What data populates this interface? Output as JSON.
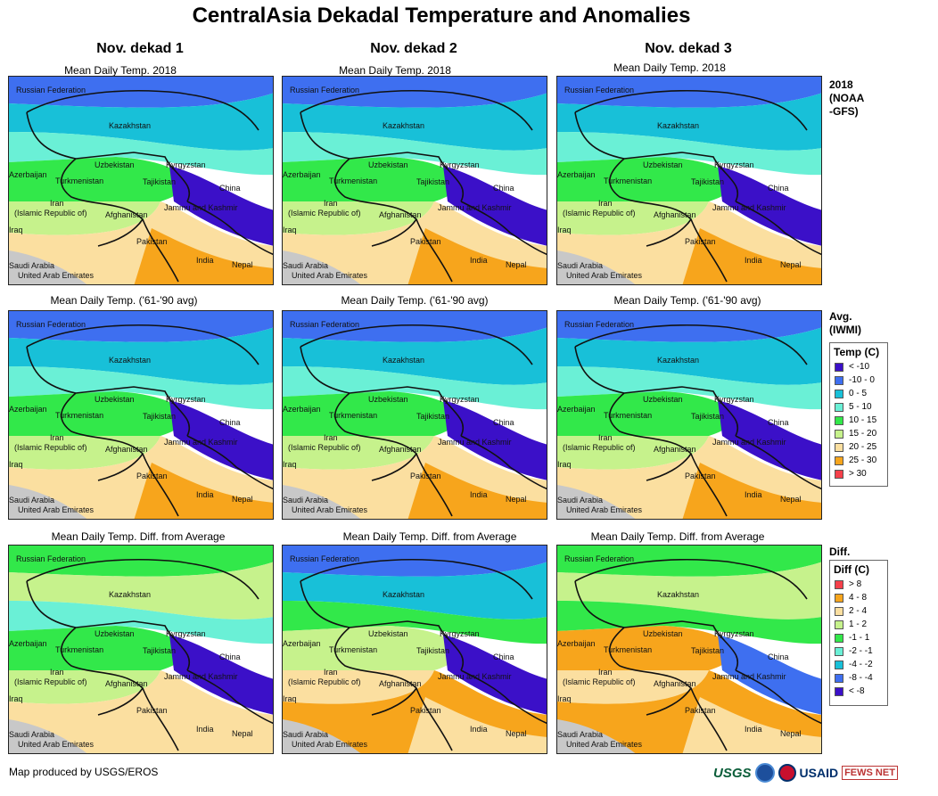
{
  "title": "CentralAsia Dekadal Temperature and Anomalies",
  "columns": [
    "Nov. dekad 1",
    "Nov. dekad 2",
    "Nov. dekad 3"
  ],
  "row_titles": {
    "current": "Mean Daily Temp. 2018",
    "average": "Mean Daily Temp. ('61-'90 avg)",
    "diff": "Mean Daily Temp. Diff. from Average"
  },
  "side_labels": {
    "current": "2018\n(NOAA\n-GFS)",
    "average": "Avg.\n(IWMI)",
    "diff": "Diff."
  },
  "map_labels": {
    "russia": "Russian Federation",
    "kazakhstan": "Kazakhstan",
    "uzbekistan": "Uzbekistan",
    "kyrgyzstan": "Kyrgyzstan",
    "azerbaijan": "Azerbaijan",
    "turkmenistan": "Turkmenistan",
    "tajikistan": "Tajikistan",
    "china": "China",
    "iran_1": "Iran",
    "iran_2": "(Islamic Republic of)",
    "afghanistan": "Afghanistan",
    "jammu": "Jammu and Kashmir",
    "iraq": "Iraq",
    "pakistan": "Pakistan",
    "india": "India",
    "nepal": "Nepal",
    "saudi": "Saudi Arabia",
    "uae": "United Arab Emirates"
  },
  "temp_legend": {
    "title": "Temp (C)",
    "items": [
      {
        "label": "< -10",
        "color": "#3b10c8"
      },
      {
        "label": "-10 - 0",
        "color": "#3e6ff0"
      },
      {
        "label": "0 - 5",
        "color": "#18c0d8"
      },
      {
        "label": "5 - 10",
        "color": "#6af0d6"
      },
      {
        "label": "10 - 15",
        "color": "#32e84a"
      },
      {
        "label": "15 - 20",
        "color": "#c6f28c"
      },
      {
        "label": "20 - 25",
        "color": "#fbdfa0"
      },
      {
        "label": "25 - 30",
        "color": "#f7a51c"
      },
      {
        "label": "> 30",
        "color": "#f5404a"
      }
    ]
  },
  "diff_legend": {
    "title": "Diff (C)",
    "items": [
      {
        "label": "> 8",
        "color": "#f5404a"
      },
      {
        "label": "4 - 8",
        "color": "#f7a51c"
      },
      {
        "label": "2 - 4",
        "color": "#fbdfa0"
      },
      {
        "label": "1 - 2",
        "color": "#c6f28c"
      },
      {
        "label": "-1 - 1",
        "color": "#32e84a"
      },
      {
        "label": "-2 - -1",
        "color": "#6af0d6"
      },
      {
        "label": "-4 - -2",
        "color": "#18c0d8"
      },
      {
        "label": "-8 - -4",
        "color": "#3e6ff0"
      },
      {
        "label": "< -8",
        "color": "#3b10c8"
      }
    ]
  },
  "panel_palette": {
    "current": [
      "#3e6ff0",
      "#18c0d8",
      "#6af0d6",
      "#32e84a",
      "#c6f28c",
      "#fbdfa0",
      "#f7a51c",
      "#3b10c8"
    ],
    "average": [
      "#3e6ff0",
      "#18c0d8",
      "#6af0d6",
      "#32e84a",
      "#c6f28c",
      "#fbdfa0",
      "#f7a51c",
      "#3b10c8"
    ],
    "diff_1": [
      "#32e84a",
      "#c6f28c",
      "#6af0d6",
      "#32e84a",
      "#c6f28c",
      "#fbdfa0",
      "#fbdfa0",
      "#3b10c8"
    ],
    "diff_2": [
      "#3e6ff0",
      "#18c0d8",
      "#32e84a",
      "#c6f28c",
      "#fbdfa0",
      "#f7a51c",
      "#fbdfa0",
      "#3b10c8"
    ],
    "diff_3": [
      "#32e84a",
      "#c6f28c",
      "#32e84a",
      "#f7a51c",
      "#fbdfa0",
      "#f7a51c",
      "#fbdfa0",
      "#3e6ff0"
    ]
  },
  "footer": "Map produced by USGS/EROS",
  "logos": {
    "usgs": "USGS",
    "usaid": "USAID",
    "fews": "FEWS NET"
  }
}
